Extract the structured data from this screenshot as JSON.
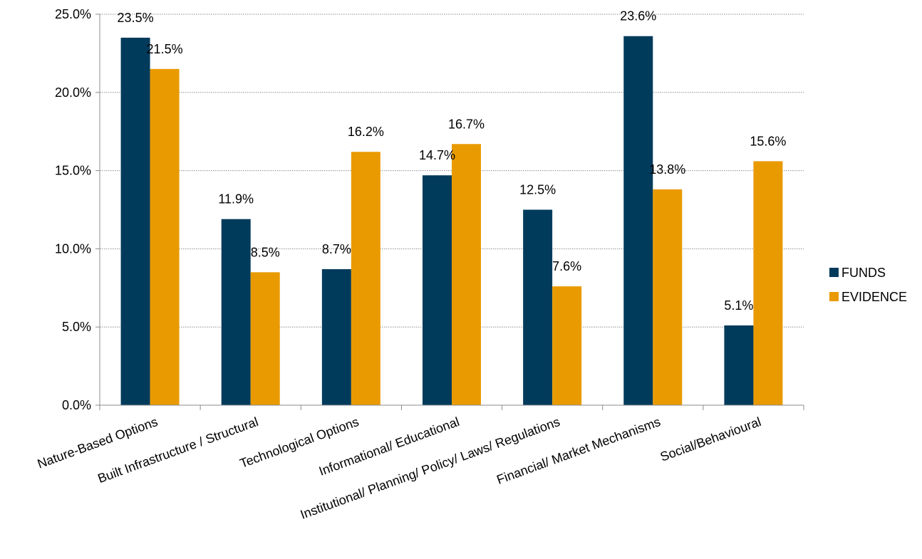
{
  "chart_data": {
    "type": "bar",
    "title": "",
    "xlabel": "",
    "ylabel": "",
    "categories": [
      "Nature-Based Options",
      "Built Infrastructure / Structural",
      "Technological Options",
      "Informational/ Educational",
      "Institutional/ Planning/ Policy/ Laws/ Regulations",
      "Financial/ Market Mechanisms",
      "Social/Behavioural"
    ],
    "series": [
      {
        "name": "FUNDS",
        "color": "#003B5C",
        "values": [
          23.5,
          11.9,
          8.7,
          14.7,
          12.5,
          23.6,
          5.1
        ],
        "labels": [
          "23.5%",
          "11.9%",
          "8.7%",
          "14.7%",
          "12.5%",
          "23.6%",
          "5.1%"
        ]
      },
      {
        "name": "EVIDENCE",
        "color": "#E99A00",
        "values": [
          21.5,
          8.5,
          16.2,
          16.7,
          7.6,
          13.8,
          15.6
        ],
        "labels": [
          "21.5%",
          "8.5%",
          "16.2%",
          "16.7%",
          "7.6%",
          "13.8%",
          "15.6%"
        ]
      }
    ],
    "ylim": [
      0,
      25
    ],
    "y_ticks": [
      0,
      5,
      10,
      15,
      20,
      25
    ],
    "y_tick_labels": [
      "0.0%",
      "5.0%",
      "10.0%",
      "15.0%",
      "20.0%",
      "25.0%"
    ],
    "grid": true,
    "legend_position": "right"
  }
}
